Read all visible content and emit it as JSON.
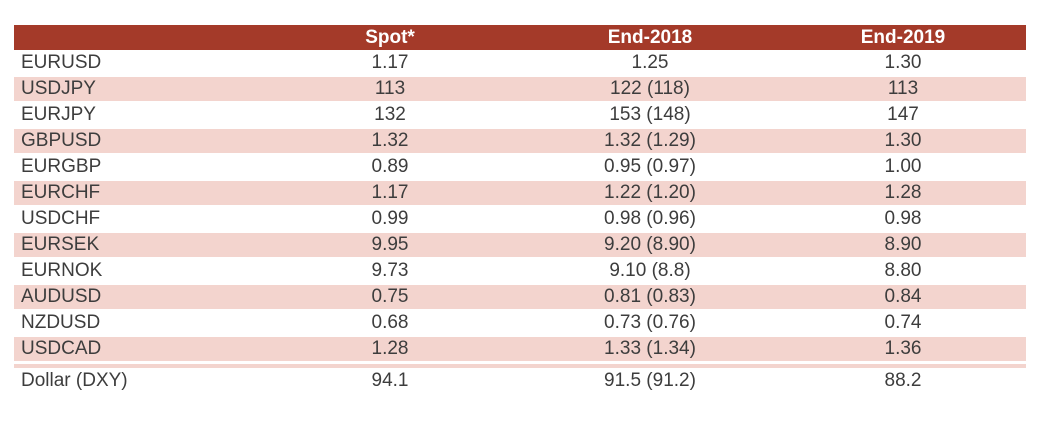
{
  "colors": {
    "header_bg": "#a43a29",
    "row_alt_bg": "#f3d4ce",
    "header_text": "#ffffff",
    "body_text": "#3d3d3d"
  },
  "chart_data": {
    "type": "table",
    "title": "",
    "columns": [
      "",
      "Spot*",
      "End-2018",
      "End-2019"
    ],
    "rows": [
      [
        "EURUSD",
        "1.17",
        "1.25",
        "1.30"
      ],
      [
        "USDJPY",
        "113",
        "122 (118)",
        "113"
      ],
      [
        "EURJPY",
        "132",
        "153 (148)",
        "147"
      ],
      [
        "GBPUSD",
        "1.32",
        "1.32 (1.29)",
        "1.30"
      ],
      [
        "EURGBP",
        "0.89",
        "0.95 (0.97)",
        "1.00"
      ],
      [
        "EURCHF",
        "1.17",
        "1.22 (1.20)",
        "1.28"
      ],
      [
        "USDCHF",
        "0.99",
        "0.98 (0.96)",
        "0.98"
      ],
      [
        "EURSEK",
        "9.95",
        "9.20 (8.90)",
        "8.90"
      ],
      [
        "EURNOK",
        "9.73",
        "9.10 (8.8)",
        "8.80"
      ],
      [
        "AUDUSD",
        "0.75",
        "0.81 (0.83)",
        "0.84"
      ],
      [
        "NZDUSD",
        "0.68",
        "0.73 (0.76)",
        "0.74"
      ],
      [
        "USDCAD",
        "1.28",
        "1.33 (1.34)",
        "1.36"
      ],
      [
        "Dollar (DXY)",
        "94.1",
        "91.5 (91.2)",
        "88.2"
      ]
    ],
    "layout": {
      "banding": "alternating white and pink rows",
      "pink_row_indices": [
        1,
        3,
        5,
        7,
        9,
        11
      ],
      "divider_after_row_index": 11
    }
  }
}
